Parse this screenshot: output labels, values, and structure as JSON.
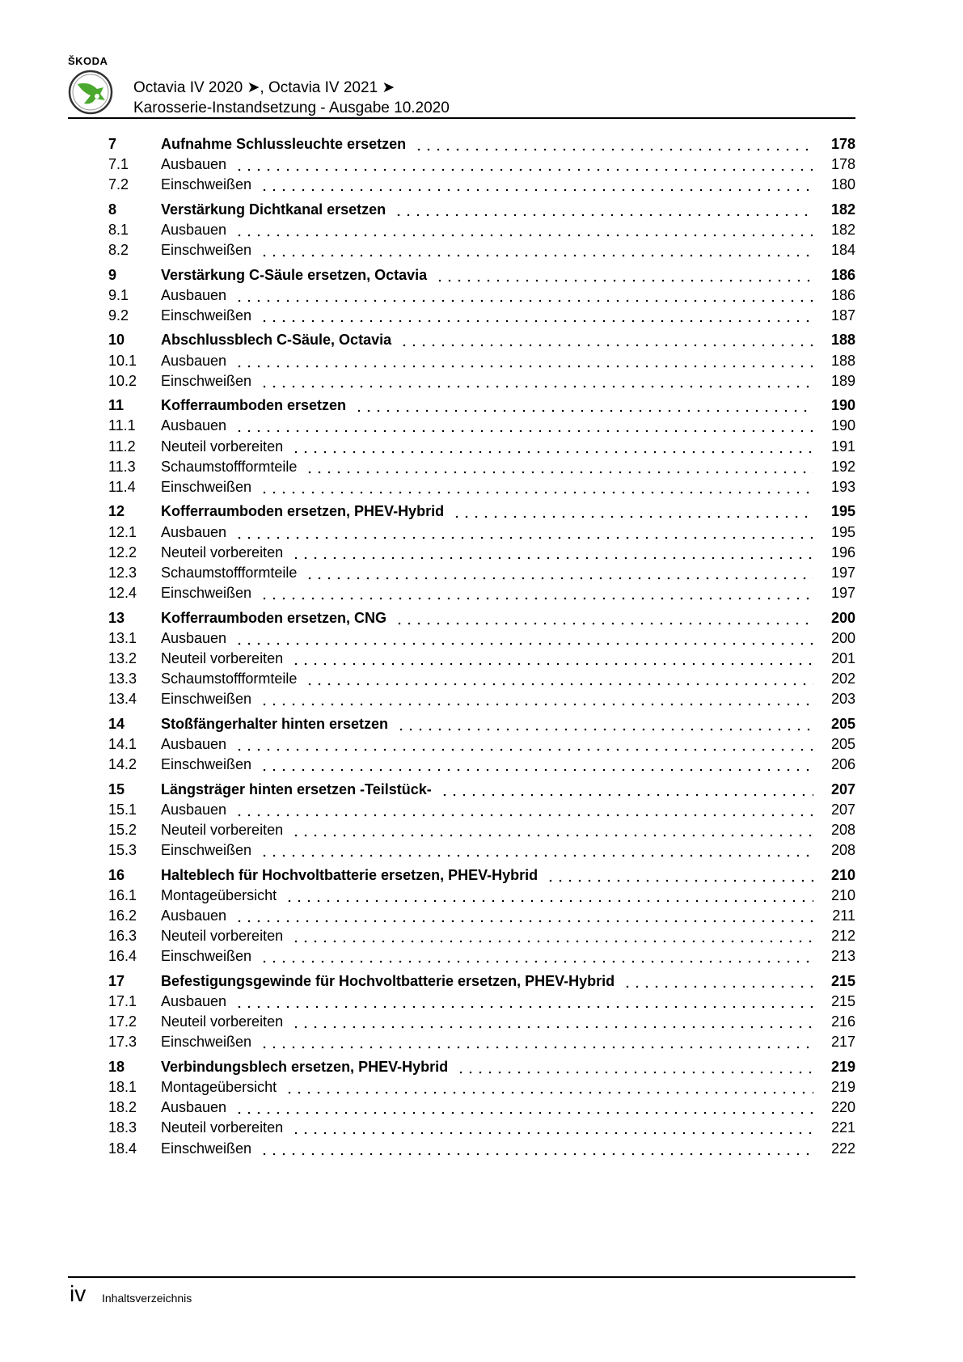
{
  "header": {
    "brand": "ŠKODA",
    "line1": "Octavia IV 2020 ➤, Octavia IV 2021 ➤",
    "line2": "Karosserie-Instandsetzung - Ausgabe 10.2020",
    "logo_color": "#4ba82e"
  },
  "toc": [
    {
      "num": "7",
      "title": "Aufnahme Schlussleuchte ersetzen",
      "page": "178",
      "subs": [
        {
          "num": "7.1",
          "title": "Ausbauen",
          "page": "178"
        },
        {
          "num": "7.2",
          "title": "Einschweißen",
          "page": "180"
        }
      ]
    },
    {
      "num": "8",
      "title": "Verstärkung Dichtkanal ersetzen",
      "page": "182",
      "subs": [
        {
          "num": "8.1",
          "title": "Ausbauen",
          "page": "182"
        },
        {
          "num": "8.2",
          "title": "Einschweißen",
          "page": "184"
        }
      ]
    },
    {
      "num": "9",
      "title": "Verstärkung C-Säule ersetzen, Octavia",
      "page": "186",
      "subs": [
        {
          "num": "9.1",
          "title": "Ausbauen",
          "page": "186"
        },
        {
          "num": "9.2",
          "title": "Einschweißen",
          "page": "187"
        }
      ]
    },
    {
      "num": "10",
      "title": "Abschlussblech C-Säule, Octavia",
      "page": "188",
      "subs": [
        {
          "num": "10.1",
          "title": "Ausbauen",
          "page": "188"
        },
        {
          "num": "10.2",
          "title": "Einschweißen",
          "page": "189"
        }
      ]
    },
    {
      "num": "11",
      "title": "Kofferraumboden ersetzen",
      "page": "190",
      "subs": [
        {
          "num": "11.1",
          "title": "Ausbauen",
          "page": "190"
        },
        {
          "num": "11.2",
          "title": "Neuteil vorbereiten",
          "page": "191"
        },
        {
          "num": "11.3",
          "title": "Schaumstoffformteile",
          "page": "192"
        },
        {
          "num": "11.4",
          "title": "Einschweißen",
          "page": "193"
        }
      ]
    },
    {
      "num": "12",
      "title": "Kofferraumboden ersetzen, PHEV-Hybrid",
      "page": "195",
      "subs": [
        {
          "num": "12.1",
          "title": "Ausbauen",
          "page": "195"
        },
        {
          "num": "12.2",
          "title": "Neuteil vorbereiten",
          "page": "196"
        },
        {
          "num": "12.3",
          "title": "Schaumstoffformteile",
          "page": "197"
        },
        {
          "num": "12.4",
          "title": "Einschweißen",
          "page": "197"
        }
      ]
    },
    {
      "num": "13",
      "title": "Kofferraumboden ersetzen, CNG",
      "page": "200",
      "subs": [
        {
          "num": "13.1",
          "title": "Ausbauen",
          "page": "200"
        },
        {
          "num": "13.2",
          "title": "Neuteil vorbereiten",
          "page": "201"
        },
        {
          "num": "13.3",
          "title": "Schaumstoffformteile",
          "page": "202"
        },
        {
          "num": "13.4",
          "title": "Einschweißen",
          "page": "203"
        }
      ]
    },
    {
      "num": "14",
      "title": "Stoßfängerhalter hinten ersetzen",
      "page": "205",
      "subs": [
        {
          "num": "14.1",
          "title": "Ausbauen",
          "page": "205"
        },
        {
          "num": "14.2",
          "title": "Einschweißen",
          "page": "206"
        }
      ]
    },
    {
      "num": "15",
      "title": "Längsträger hinten ersetzen -Teilstück-",
      "page": "207",
      "subs": [
        {
          "num": "15.1",
          "title": "Ausbauen",
          "page": "207"
        },
        {
          "num": "15.2",
          "title": "Neuteil vorbereiten",
          "page": "208"
        },
        {
          "num": "15.3",
          "title": "Einschweißen",
          "page": "208"
        }
      ]
    },
    {
      "num": "16",
      "title": "Halteblech für Hochvoltbatterie ersetzen, PHEV-Hybrid",
      "page": "210",
      "subs": [
        {
          "num": "16.1",
          "title": "Montageübersicht",
          "page": "210"
        },
        {
          "num": "16.2",
          "title": "Ausbauen",
          "page": "211"
        },
        {
          "num": "16.3",
          "title": "Neuteil vorbereiten",
          "page": "212"
        },
        {
          "num": "16.4",
          "title": "Einschweißen",
          "page": "213"
        }
      ]
    },
    {
      "num": "17",
      "title": "Befestigungsgewinde für Hochvoltbatterie ersetzen, PHEV-Hybrid",
      "page": "215",
      "subs": [
        {
          "num": "17.1",
          "title": "Ausbauen",
          "page": "215"
        },
        {
          "num": "17.2",
          "title": "Neuteil vorbereiten",
          "page": "216"
        },
        {
          "num": "17.3",
          "title": "Einschweißen",
          "page": "217"
        }
      ]
    },
    {
      "num": "18",
      "title": "Verbindungsblech ersetzen, PHEV-Hybrid",
      "page": "219",
      "subs": [
        {
          "num": "18.1",
          "title": "Montageübersicht",
          "page": "219"
        },
        {
          "num": "18.2",
          "title": "Ausbauen",
          "page": "220"
        },
        {
          "num": "18.3",
          "title": "Neuteil vorbereiten",
          "page": "221"
        },
        {
          "num": "18.4",
          "title": "Einschweißen",
          "page": "222"
        }
      ]
    }
  ],
  "footer": {
    "page_number": "iv",
    "label": "Inhaltsverzeichnis"
  }
}
